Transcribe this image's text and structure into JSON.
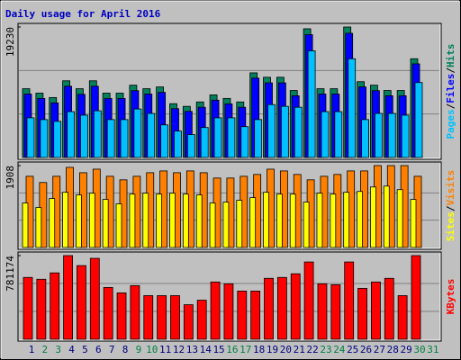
{
  "chart_data": {
    "type": "bar",
    "title": "Daily usage for April 2016",
    "title_color": "#0000c0",
    "legend_separator": "/",
    "categories": [
      "1",
      "2",
      "3",
      "4",
      "5",
      "6",
      "7",
      "8",
      "9",
      "10",
      "11",
      "12",
      "13",
      "14",
      "15",
      "16",
      "17",
      "18",
      "19",
      "20",
      "21",
      "22",
      "23",
      "24",
      "25",
      "26",
      "27",
      "28",
      "29",
      "30",
      "31"
    ],
    "label_colors": [
      "#000080",
      "#008040",
      "#008040",
      "#000080",
      "#000080",
      "#000080",
      "#000080",
      "#000080",
      "#008040",
      "#008040",
      "#000080",
      "#000080",
      "#000080",
      "#000080",
      "#000080",
      "#008040",
      "#008040",
      "#000080",
      "#000080",
      "#000080",
      "#000080",
      "#000080",
      "#008040",
      "#008040",
      "#000080",
      "#000080",
      "#000080",
      "#000080",
      "#000080",
      "#008040",
      "#008040"
    ],
    "grid": true,
    "panels": [
      {
        "ylim": [
          0,
          19230
        ],
        "yticks": [
          19230
        ],
        "series": [
          {
            "name": "Hits",
            "color": "#00805c",
            "values": [
              10135,
              9485,
              8835,
              11304,
              10135,
              11304,
              9485,
              9485,
              10655,
              10135,
              10395,
              7926,
              7536,
              8186,
              9225,
              8706,
              8186,
              12474,
              11824,
              11824,
              9875,
              18970,
              10135,
              10135,
              19230,
              11174,
              10655,
              9875,
              9875,
              14553,
              null
            ]
          },
          {
            "name": "Files",
            "color": "#0000ff",
            "values": [
              9350,
              8700,
              8050,
              10500,
              9300,
              10500,
              8700,
              8700,
              9850,
              9350,
              9600,
              7200,
              6800,
              7400,
              8450,
              7900,
              7400,
              11700,
              11000,
              11000,
              9100,
              18100,
              9350,
              9350,
              18300,
              10400,
              9850,
              9100,
              9100,
              13800,
              null
            ]
          },
          {
            "name": "Pages",
            "color": "#00c0ff",
            "values": [
              5847,
              5587,
              5327,
              6757,
              6237,
              6886,
              5587,
              5587,
              7146,
              6497,
              4808,
              3898,
              3378,
              4418,
              5847,
              5847,
              4548,
              5587,
              7796,
              7536,
              7406,
              15722,
              6757,
              6757,
              14553,
              5587,
              6497,
              6497,
              6237,
              11044,
              null
            ]
          }
        ]
      },
      {
        "ylim": [
          0,
          1908
        ],
        "yticks": [
          1908
        ],
        "series": [
          {
            "name": "Visits",
            "color": "#ff8000",
            "values": [
              1659,
              1514,
              1659,
              1867,
              1742,
              1825,
              1659,
              1576,
              1659,
              1742,
              1784,
              1742,
              1784,
              1742,
              1618,
              1618,
              1659,
              1701,
              1825,
              1784,
              1701,
              1576,
              1659,
              1701,
              1784,
              1784,
              1908,
              1908,
              1908,
              1659,
              null
            ]
          },
          {
            "name": "Sites",
            "color": "#ffff00",
            "values": [
              1037,
              933,
              1141,
              1286,
              1224,
              1265,
              1120,
              1016,
              1244,
              1265,
              1244,
              1265,
              1244,
              1224,
              1037,
              1058,
              1099,
              1161,
              1286,
              1244,
              1244,
              1058,
              1265,
              1244,
              1286,
              1306,
              1410,
              1431,
              1348,
              1120,
              null
            ]
          }
        ]
      },
      {
        "ylim": [
          0,
          781174
        ],
        "yticks": [
          781174
        ],
        "series": [
          {
            "name": "KBytes",
            "color": "#ff0000",
            "values": [
              577390,
              560410,
              619840,
              781174,
              687770,
              755700,
              483990,
              433050,
              500970,
              407570,
              407570,
              407570,
              322660,
              365110,
              534930,
              517950,
              450030,
              450030,
              568900,
              577390,
              611350,
              721730,
              517950,
              509460,
              721730,
              475500,
              534930,
              568900,
              407570,
              781174,
              null
            ]
          }
        ]
      }
    ]
  }
}
